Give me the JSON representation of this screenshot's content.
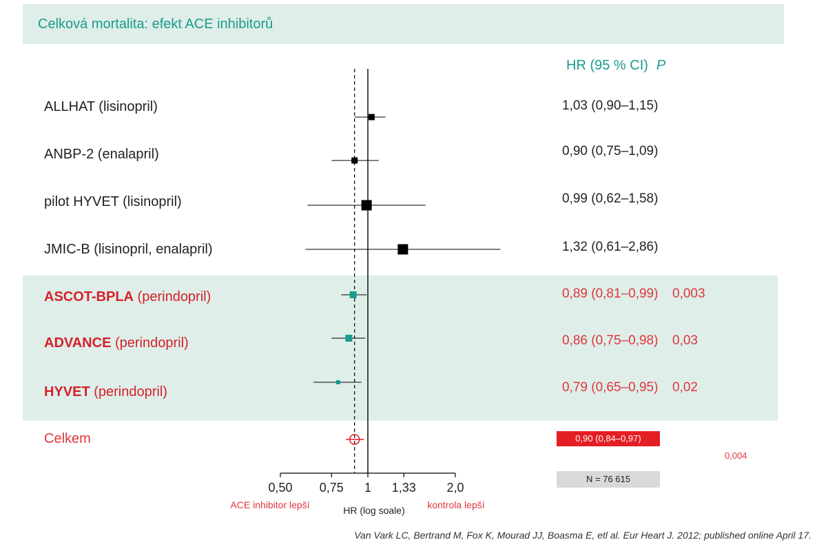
{
  "title": "Celková mortalita: efekt ACE inhibitorů",
  "header": {
    "hr_label": "HR (95 % CI)",
    "p_label": "P"
  },
  "colors": {
    "teal": "#1a9b8c",
    "red": "#e31e24",
    "band": "#dfeee9",
    "black": "#000000"
  },
  "chart_data": {
    "type": "forest",
    "xlabel": "HR (log soale)",
    "x_scale": "log",
    "xlim": [
      0.5,
      2.0
    ],
    "x_ticks": [
      {
        "value": 0.5,
        "label": "0,50"
      },
      {
        "value": 0.75,
        "label": "0,75"
      },
      {
        "value": 1.0,
        "label": "1"
      },
      {
        "value": 1.33,
        "label": "1,33"
      },
      {
        "value": 2.0,
        "label": "2,0"
      }
    ],
    "reference_line": 1.0,
    "pooled_line": 0.9,
    "favours_left": "ACE inhibitor lepší",
    "favours_right": "kontrola lepší",
    "studies": [
      {
        "name": "ALLHAT (lisinopril)",
        "bold": "",
        "drug": "",
        "hr": 1.03,
        "lo": 0.9,
        "hi": 1.15,
        "ci_text": "1,03 (0,90–1,15)",
        "p": "",
        "highlight": false,
        "weight": 9
      },
      {
        "name": "ANBP-2 (enalapril)",
        "bold": "",
        "drug": "",
        "hr": 0.9,
        "lo": 0.75,
        "hi": 1.09,
        "ci_text": "0,90 (0,75–1,09)",
        "p": "",
        "highlight": false,
        "weight": 9
      },
      {
        "name": "pilot HYVET (lisinopril)",
        "bold": "",
        "drug": "",
        "hr": 0.99,
        "lo": 0.62,
        "hi": 1.58,
        "ci_text": "0,99 (0,62–1,58)",
        "p": "",
        "highlight": false,
        "weight": 15
      },
      {
        "name": "JMIC-B (lisinopril, enalapril)",
        "bold": "",
        "drug": "",
        "hr": 1.32,
        "lo": 0.61,
        "hi": 2.86,
        "ci_text": "1,32 (0,61–2,86)",
        "p": "",
        "highlight": false,
        "weight": 15
      },
      {
        "name": "",
        "bold": "ASCOT-BPLA",
        "drug": " (perindopril)",
        "hr": 0.89,
        "lo": 0.81,
        "hi": 0.99,
        "ci_text": "0,89 (0,81–0,99)",
        "p": "0,003",
        "highlight": true,
        "weight": 10
      },
      {
        "name": "",
        "bold": "ADVANCE",
        "drug": " (perindopril)",
        "hr": 0.86,
        "lo": 0.75,
        "hi": 0.98,
        "ci_text": "0,86 (0,75–0,98)",
        "p": "0,03",
        "highlight": true,
        "weight": 10
      },
      {
        "name": "",
        "bold": "HYVET",
        "drug": " (perindopril)",
        "hr": 0.79,
        "lo": 0.65,
        "hi": 0.95,
        "ci_text": "0,79 (0,65–0,95)",
        "p": "0,02",
        "highlight": true,
        "weight": 6
      }
    ],
    "overall": {
      "name": "Celkem",
      "hr": 0.9,
      "lo": 0.84,
      "hi": 0.97,
      "ci_text": "0,90 (0,84–0,97)",
      "p": "0,004",
      "n_text": "N = 76 615"
    }
  },
  "citation": "Van Vark LC, Bertrand M, Fox K, Mourad JJ, Boasma E, etl al. Eur Heart J. 2012; published online April 17."
}
